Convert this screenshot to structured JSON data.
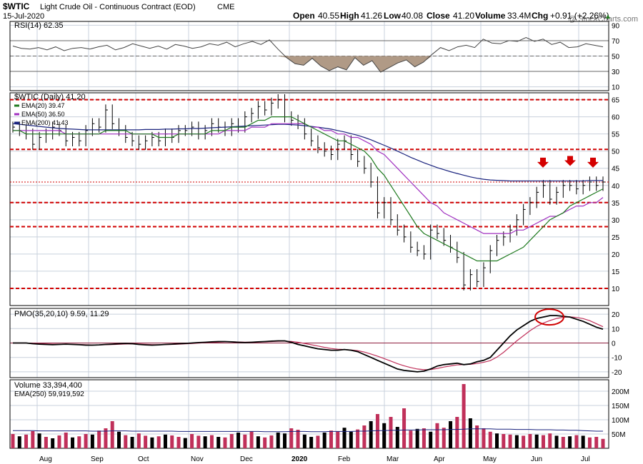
{
  "header": {
    "symbol": "$WTIC",
    "name": "Light Crude Oil - Continuous Contract (EOD)",
    "exchange": "CME",
    "date": "15-Jul-2020",
    "open_label": "Open",
    "open": "40.55",
    "high_label": "High",
    "high": "41.26",
    "low_label": "Low",
    "low": "40.08",
    "close_label": "Close",
    "close": "41.20",
    "volume_label": "Volume",
    "volume": "33.4M",
    "chg_label": "Chg",
    "chg": "+0.91 (+2.26%)",
    "chg_arrow": "▲",
    "watermark": "@ StockCharts.com"
  },
  "colors": {
    "background": "#ffffff",
    "panel_bg": "#ffffff",
    "grid": "#c8d0dc",
    "axis_border": "#000000",
    "price_bar": "#000000",
    "ema20": "#1f7a1f",
    "ema50": "#a030c0",
    "ema200": "#1a237e",
    "support_line": "#d00000",
    "marker_arrow": "#d40000",
    "rsi_line": "#444444",
    "rsi_fill": "#b09a86",
    "pmo_line": "#000000",
    "pmo_signal": "#c0305a",
    "volume_bar": "#c0305a",
    "volume_bar_down": "#000000",
    "volume_ema": "#1a237e",
    "circle": "#d00000"
  },
  "chart_data": {
    "type": "line",
    "x_axis": {
      "months": [
        "Aug",
        "Sep",
        "Oct",
        "Nov",
        "Dec",
        "2020",
        "Feb",
        "Mar",
        "Apr",
        "May",
        "Jun",
        "Jul"
      ],
      "year_label_index": 5
    },
    "rsi": {
      "label": "RSI(14) 62.35",
      "ylim": [
        5,
        95
      ],
      "ticks": [
        10,
        30,
        50,
        70,
        90
      ],
      "reference_lines": [
        30,
        50,
        70
      ],
      "values": [
        63,
        60,
        59,
        61,
        58,
        62,
        57,
        60,
        61,
        59,
        62,
        64,
        58,
        61,
        66,
        63,
        60,
        63,
        59,
        65,
        63,
        60,
        62,
        66,
        64,
        68,
        62,
        66,
        69,
        65,
        71,
        59,
        48,
        40,
        38,
        47,
        37,
        31,
        36,
        32,
        48,
        38,
        44,
        29,
        35,
        41,
        45,
        36,
        42,
        52,
        61,
        57,
        62,
        64,
        61,
        72,
        67,
        66,
        70,
        69,
        74,
        69,
        72,
        65,
        68,
        61,
        62,
        66,
        64,
        62
      ]
    },
    "price": {
      "label": "$WTIC (Daily) 41.20",
      "ylim": [
        5,
        67
      ],
      "ticks": [
        10,
        15,
        20,
        25,
        30,
        35,
        40,
        45,
        50,
        55,
        60,
        65
      ],
      "support_levels": [
        65,
        50.5,
        35,
        28,
        10
      ],
      "resistance_dotted": 41,
      "arrows_near": [
        42.5,
        43,
        42.5
      ],
      "close": [
        57,
        56,
        55,
        52,
        54,
        55,
        57,
        56,
        53,
        54,
        53,
        56,
        58,
        57,
        62,
        58,
        56,
        54,
        53,
        52,
        53,
        54,
        53,
        55,
        54,
        56,
        56,
        57,
        55,
        56,
        58,
        57,
        56,
        58,
        57,
        60,
        61,
        63,
        62,
        64,
        65,
        60,
        59,
        58,
        55,
        53,
        51,
        50,
        49,
        52,
        53,
        49,
        47,
        45,
        41,
        32,
        35,
        30,
        27,
        25,
        22,
        21,
        20,
        27,
        26,
        24,
        22,
        19,
        11,
        14,
        12,
        16,
        21,
        24,
        25,
        27,
        30,
        33,
        35,
        38,
        40,
        36,
        38,
        40,
        40,
        39,
        40,
        41,
        40,
        41
      ],
      "ema20": [
        56,
        56,
        55,
        55,
        55,
        55,
        55,
        55,
        55,
        55,
        55,
        55,
        55,
        55,
        56,
        56,
        56,
        56,
        55,
        55,
        55,
        55,
        54,
        54,
        54,
        55,
        55,
        55,
        55,
        55,
        56,
        56,
        56,
        57,
        57,
        57,
        58,
        59,
        59,
        60,
        60,
        60,
        60,
        59,
        58,
        57,
        56,
        55,
        54,
        53,
        53,
        52,
        51,
        50,
        48,
        45,
        43,
        40,
        37,
        34,
        31,
        28,
        26,
        25,
        24,
        23,
        22,
        21,
        20,
        19,
        18,
        18,
        18,
        18,
        19,
        20,
        21,
        22,
        24,
        26,
        28,
        30,
        31,
        32,
        34,
        35,
        36,
        37,
        38,
        39
      ],
      "ema50": [
        56,
        56,
        56,
        56,
        56,
        56,
        56,
        56,
        55,
        55,
        55,
        55,
        55,
        55,
        55,
        55,
        55,
        55,
        55,
        55,
        55,
        55,
        55,
        55,
        55,
        55,
        55,
        55,
        55,
        55,
        55,
        55,
        56,
        56,
        56,
        56,
        57,
        57,
        57,
        58,
        58,
        58,
        58,
        58,
        58,
        57,
        57,
        56,
        56,
        55,
        55,
        54,
        54,
        53,
        52,
        50,
        49,
        47,
        45,
        43,
        41,
        39,
        37,
        35,
        34,
        32,
        31,
        30,
        29,
        28,
        27,
        26,
        26,
        26,
        26,
        26,
        27,
        27,
        28,
        29,
        30,
        31,
        31,
        32,
        33,
        34,
        34,
        35,
        35,
        36.5
      ],
      "ema200": [
        58,
        57.8,
        57.6,
        57.4,
        57.2,
        57,
        56.8,
        56.6,
        56.5,
        56.4,
        56.3,
        56.2,
        56.2,
        56.2,
        56.2,
        56.2,
        56.2,
        56.2,
        56.2,
        56.2,
        56.3,
        56.3,
        56.3,
        56.4,
        56.4,
        56.5,
        56.5,
        56.6,
        56.6,
        56.7,
        56.8,
        56.9,
        57,
        57.1,
        57.2,
        57.3,
        57.4,
        57.5,
        57.6,
        57.7,
        57.8,
        57.8,
        57.7,
        57.6,
        57.4,
        57.2,
        57,
        56.7,
        56.4,
        56,
        55.6,
        55.1,
        54.6,
        54,
        53.3,
        52.5,
        51.7,
        50.9,
        50,
        49.1,
        48.2,
        47.4,
        46.6,
        45.9,
        45.2,
        44.6,
        44,
        43.5,
        43,
        42.5,
        42.1,
        41.8,
        41.6,
        41.5,
        41.4,
        41.3,
        41.3,
        41.3,
        41.3,
        41.3,
        41.3,
        41.3,
        41.3,
        41.3,
        41.3,
        41.3,
        41.3,
        41.4,
        41.4,
        41.43
      ]
    },
    "pmo": {
      "label": "PMO(35,20,10) 9.59, 11.29",
      "ylim": [
        -24,
        24
      ],
      "ticks": [
        20,
        10,
        0,
        -10,
        -20
      ],
      "values": [
        0,
        0,
        0,
        -0.5,
        -0.8,
        -1,
        -1.2,
        -1,
        -0.8,
        -1,
        -1.2,
        -1.5,
        -1.5,
        -1.3,
        -1,
        -0.8,
        -0.5,
        -0.3,
        -0.5,
        -1,
        -1.3,
        -1.5,
        -1.3,
        -1,
        -0.8,
        -0.5,
        -0.3,
        0,
        0.3,
        0.5,
        0.8,
        1,
        1,
        0.8,
        0.5,
        0.3,
        0.5,
        0.8,
        1,
        1.3,
        1.5,
        1.5,
        0.5,
        -1,
        -2,
        -3,
        -4,
        -4.5,
        -5,
        -5,
        -4.5,
        -5,
        -6,
        -8,
        -10,
        -12,
        -14,
        -16,
        -18,
        -19,
        -19.5,
        -20,
        -19.5,
        -18,
        -16,
        -15,
        -14.5,
        -14,
        -15,
        -14.5,
        -13,
        -12,
        -10,
        -5,
        0,
        5,
        9,
        12,
        15,
        17,
        18,
        19,
        19,
        18.5,
        18,
        16.5,
        15,
        13,
        11,
        9.59
      ],
      "signal": [
        0,
        0,
        0,
        -0.2,
        -0.4,
        -0.6,
        -0.8,
        -0.8,
        -0.8,
        -0.9,
        -1,
        -1.2,
        -1.3,
        -1.3,
        -1.2,
        -1.1,
        -0.9,
        -0.7,
        -0.6,
        -0.7,
        -0.9,
        -1.1,
        -1.2,
        -1.1,
        -1,
        -0.8,
        -0.6,
        -0.4,
        -0.1,
        0.2,
        0.4,
        0.6,
        0.8,
        0.8,
        0.7,
        0.6,
        0.6,
        0.7,
        0.8,
        1,
        1.2,
        1.3,
        1.1,
        0.5,
        -0.3,
        -1.2,
        -2.1,
        -3,
        -3.8,
        -4.3,
        -4.5,
        -4.8,
        -5.3,
        -6.3,
        -7.6,
        -9.1,
        -10.8,
        -12.5,
        -14.3,
        -15.8,
        -17,
        -18,
        -18.5,
        -18.4,
        -17.6,
        -16.7,
        -15.9,
        -15.2,
        -15,
        -14.8,
        -14.2,
        -13.4,
        -12.2,
        -9.8,
        -6.5,
        -2.5,
        1.5,
        5,
        8.5,
        11.5,
        13.8,
        15.6,
        17,
        17.8,
        18.1,
        17.7,
        16.9,
        15.5,
        13.4,
        11.29
      ]
    },
    "volume": {
      "label": "Volume 33,394,400",
      "ema_label": "EMA(250) 59,919,592",
      "ylim": [
        0,
        240
      ],
      "ticks": [
        50,
        100,
        150,
        200
      ],
      "tick_labels": [
        "50M",
        "100M",
        "150M",
        "200M"
      ],
      "values": [
        50,
        42,
        48,
        60,
        52,
        40,
        35,
        45,
        55,
        38,
        42,
        50,
        48,
        62,
        70,
        95,
        58,
        46,
        40,
        52,
        44,
        38,
        42,
        48,
        45,
        40,
        36,
        50,
        44,
        42,
        46,
        40,
        38,
        50,
        55,
        48,
        60,
        42,
        38,
        45,
        55,
        52,
        70,
        65,
        48,
        40,
        44,
        55,
        62,
        60,
        72,
        58,
        66,
        80,
        95,
        120,
        88,
        110,
        75,
        140,
        62,
        68,
        70,
        58,
        88,
        72,
        95,
        110,
        225,
        105,
        80,
        70,
        58,
        52,
        50,
        48,
        46,
        44,
        50,
        48,
        46,
        52,
        44,
        40,
        42,
        46,
        44,
        38,
        40,
        33
      ],
      "down": [
        false,
        true,
        false,
        false,
        true,
        false,
        true,
        false,
        false,
        true,
        false,
        false,
        true,
        false,
        false,
        false,
        true,
        false,
        true,
        false,
        false,
        true,
        false,
        true,
        false,
        false,
        true,
        false,
        false,
        true,
        false,
        true,
        false,
        false,
        true,
        false,
        false,
        true,
        false,
        false,
        true,
        true,
        false,
        false,
        true,
        true,
        false,
        true,
        false,
        false,
        true,
        true,
        false,
        false,
        true,
        false,
        true,
        false,
        true,
        false,
        false,
        true,
        false,
        true,
        false,
        false,
        true,
        false,
        false,
        true,
        false,
        false,
        false,
        true,
        false,
        false,
        true,
        false,
        false,
        true,
        false,
        false,
        true,
        false,
        true,
        false,
        true,
        false,
        false,
        false
      ],
      "ema": [
        62,
        62,
        62,
        62,
        61,
        61,
        61,
        61,
        61,
        61,
        61,
        61,
        60,
        60,
        60,
        61,
        61,
        61,
        60,
        60,
        60,
        60,
        60,
        60,
        60,
        59,
        59,
        59,
        59,
        59,
        59,
        59,
        59,
        59,
        59,
        59,
        59,
        59,
        58,
        58,
        58,
        58,
        59,
        59,
        59,
        58,
        58,
        58,
        59,
        59,
        59,
        59,
        60,
        60,
        61,
        62,
        62,
        63,
        63,
        64,
        64,
        64,
        65,
        65,
        65,
        65,
        66,
        66,
        67,
        68,
        68,
        68,
        68,
        67,
        67,
        67,
        66,
        66,
        66,
        65,
        65,
        65,
        64,
        64,
        63,
        63,
        62,
        61,
        60,
        59.9
      ]
    }
  }
}
